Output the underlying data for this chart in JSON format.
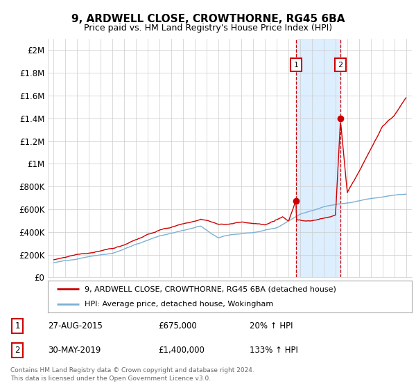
{
  "title": "9, ARDWELL CLOSE, CROWTHORNE, RG45 6BA",
  "subtitle": "Price paid vs. HM Land Registry's House Price Index (HPI)",
  "ylabel_ticks": [
    "£0",
    "£200K",
    "£400K",
    "£600K",
    "£800K",
    "£1M",
    "£1.2M",
    "£1.4M",
    "£1.6M",
    "£1.8M",
    "£2M"
  ],
  "ytick_values": [
    0,
    200000,
    400000,
    600000,
    800000,
    1000000,
    1200000,
    1400000,
    1600000,
    1800000,
    2000000
  ],
  "ylim": [
    0,
    2100000
  ],
  "xlim_start": 1994.5,
  "xlim_end": 2025.5,
  "marker1_x": 2015.65,
  "marker1_y": 675000,
  "marker2_x": 2019.41,
  "marker2_y": 1400000,
  "marker1_label": "1",
  "marker2_label": "2",
  "shade_color": "#ddeeff",
  "dashed_color": "#cc0000",
  "legend_line1": "9, ARDWELL CLOSE, CROWTHORNE, RG45 6BA (detached house)",
  "legend_line2": "HPI: Average price, detached house, Wokingham",
  "table_row1": [
    "1",
    "27-AUG-2015",
    "£675,000",
    "20% ↑ HPI"
  ],
  "table_row2": [
    "2",
    "30-MAY-2019",
    "£1,400,000",
    "133% ↑ HPI"
  ],
  "footer": "Contains HM Land Registry data © Crown copyright and database right 2024.\nThis data is licensed under the Open Government Licence v3.0.",
  "hpi_color": "#7ab0d4",
  "price_color": "#cc0000",
  "background_color": "#ffffff",
  "grid_color": "#cccccc"
}
